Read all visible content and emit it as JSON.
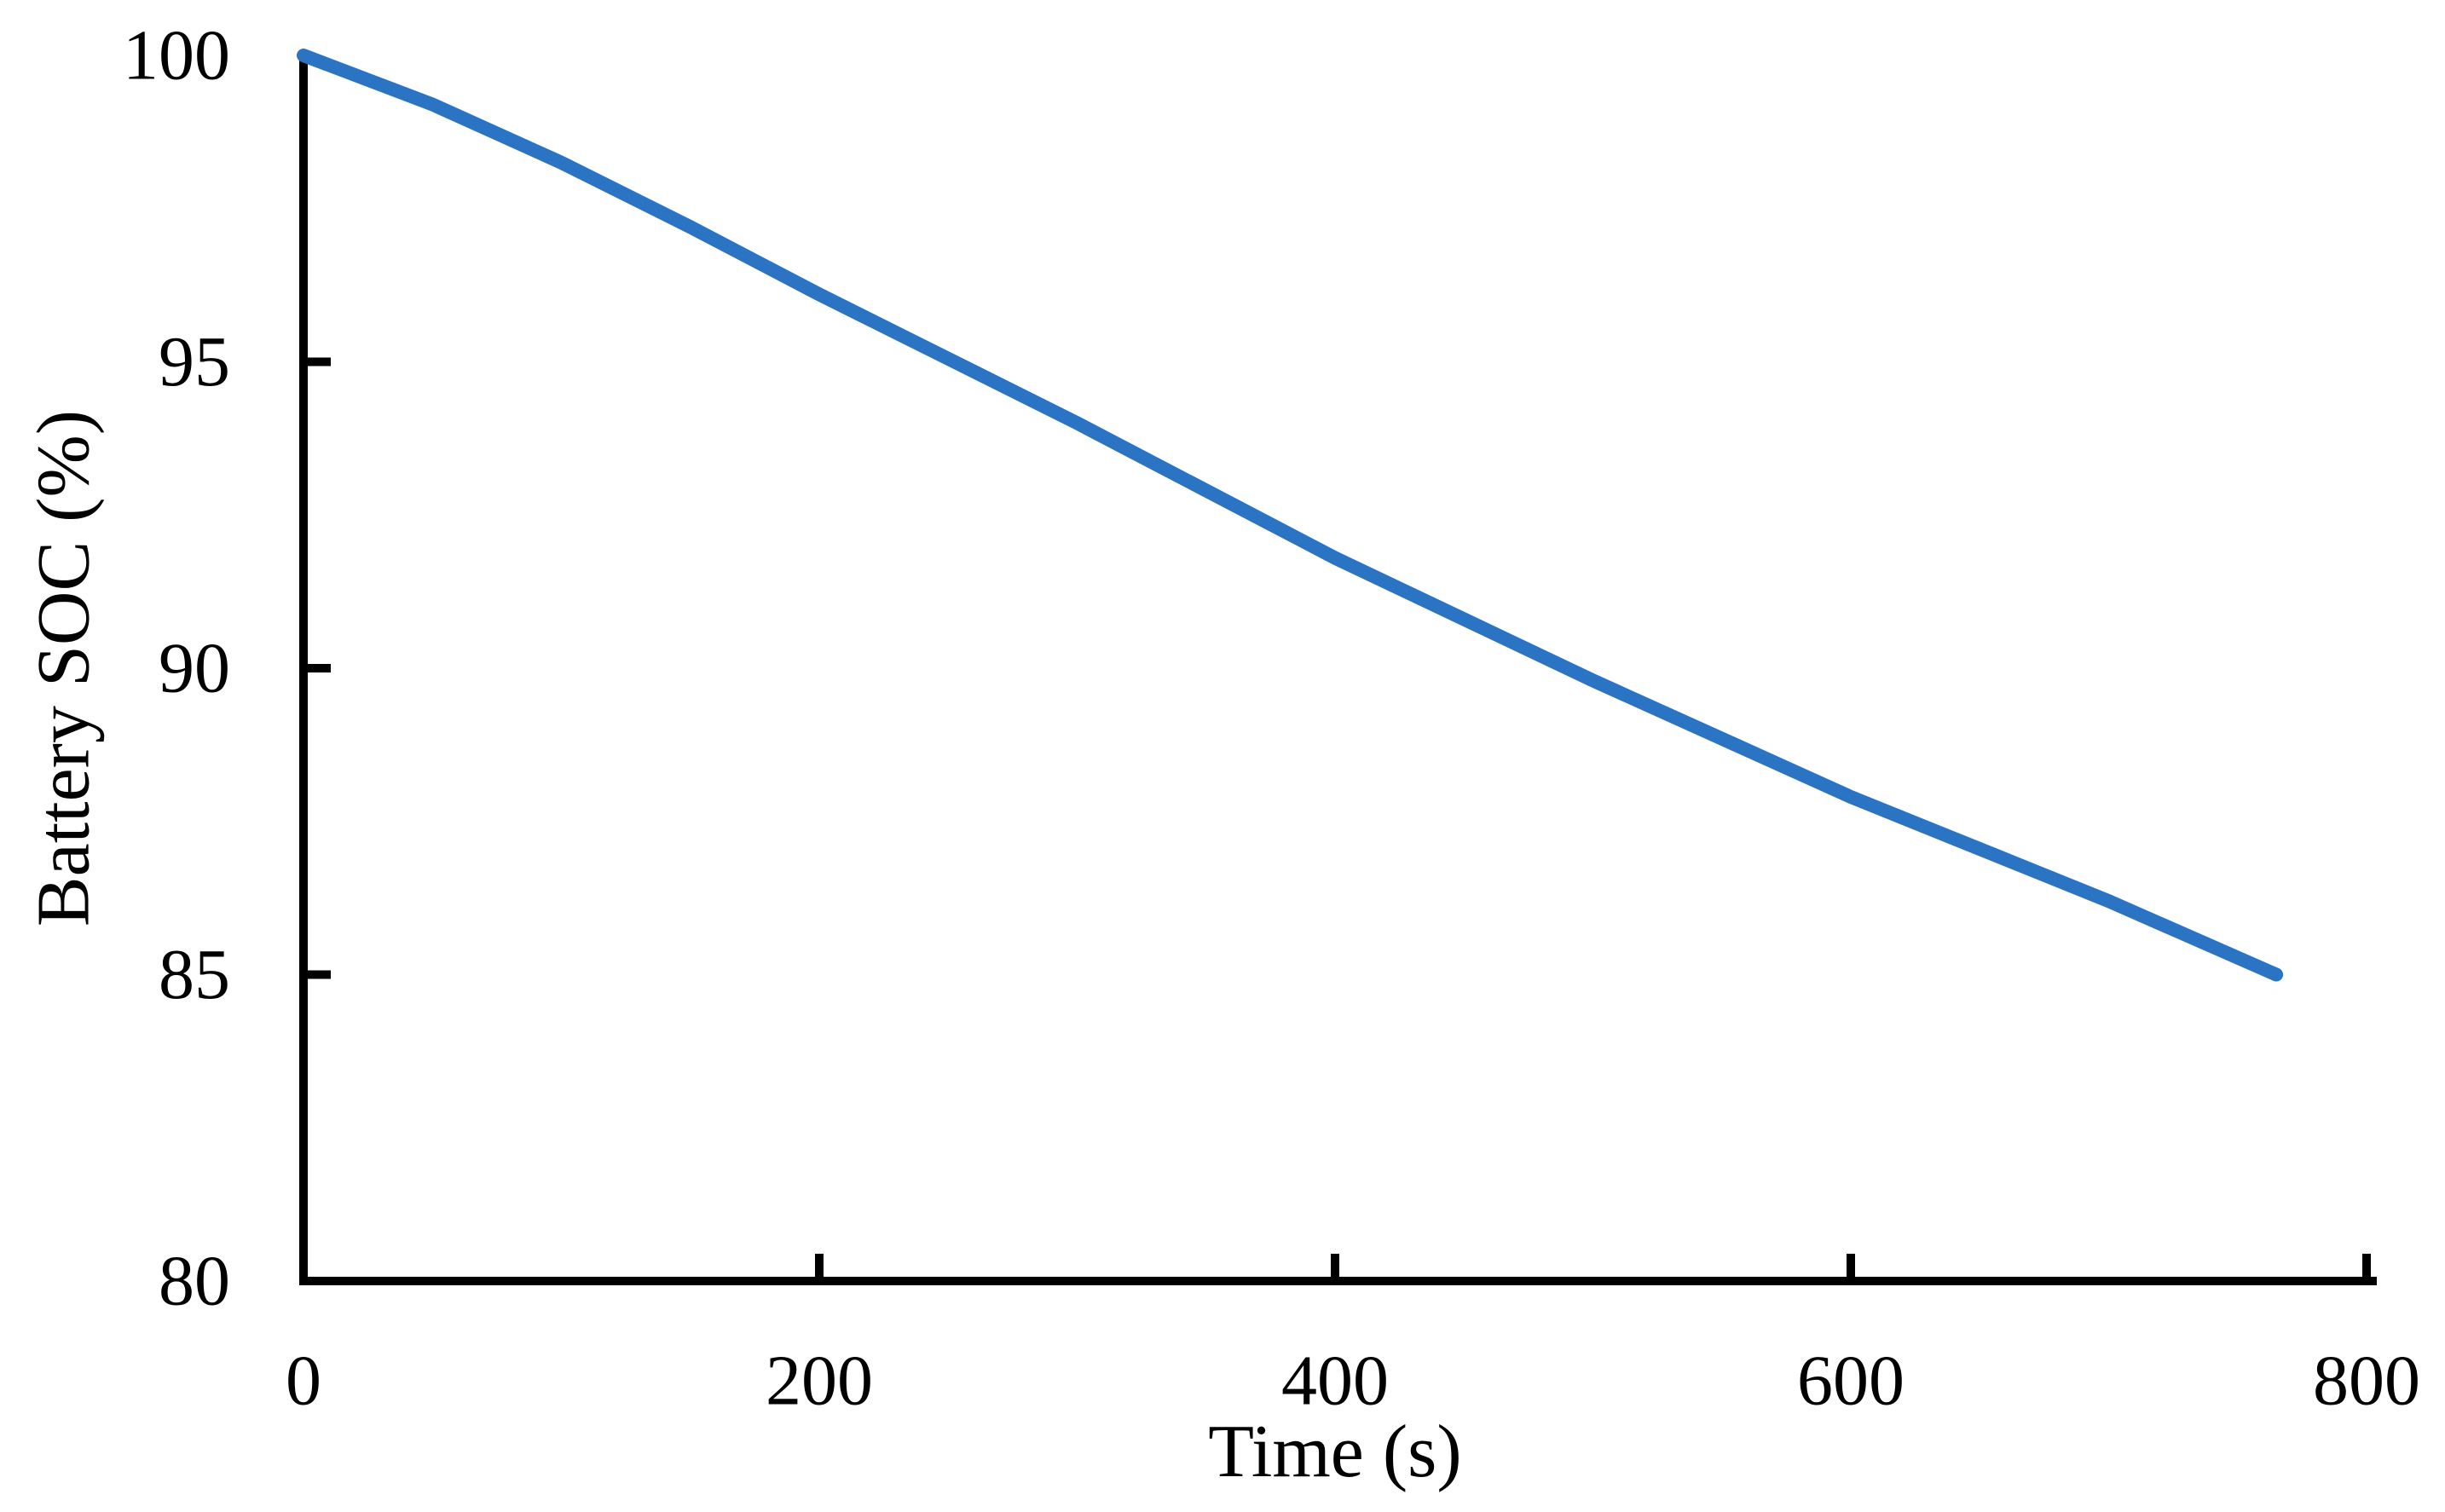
{
  "figure": {
    "background": "#ffffff",
    "axis_color": "#000000",
    "text_color": "#000000"
  },
  "chart_data": {
    "type": "line",
    "title": "",
    "xlabel": "Time (s)",
    "ylabel": "Battery SOC (%)",
    "xlim": [
      0,
      800
    ],
    "ylim": [
      80,
      100
    ],
    "x_ticks": [
      0,
      200,
      400,
      600,
      800
    ],
    "y_ticks": [
      80,
      85,
      90,
      95,
      100
    ],
    "grid": false,
    "legend_position": "none",
    "series": [
      {
        "name": "Battery SOC",
        "color": "#2B74C4",
        "x": [
          0,
          50,
          100,
          150,
          200,
          250,
          300,
          350,
          400,
          450,
          500,
          550,
          600,
          650,
          700,
          765
        ],
        "y": [
          100,
          99.2,
          98.25,
          97.2,
          96.1,
          95.05,
          94.0,
          92.9,
          91.8,
          90.8,
          89.8,
          88.85,
          87.9,
          87.05,
          86.2,
          85.0
        ]
      }
    ]
  }
}
